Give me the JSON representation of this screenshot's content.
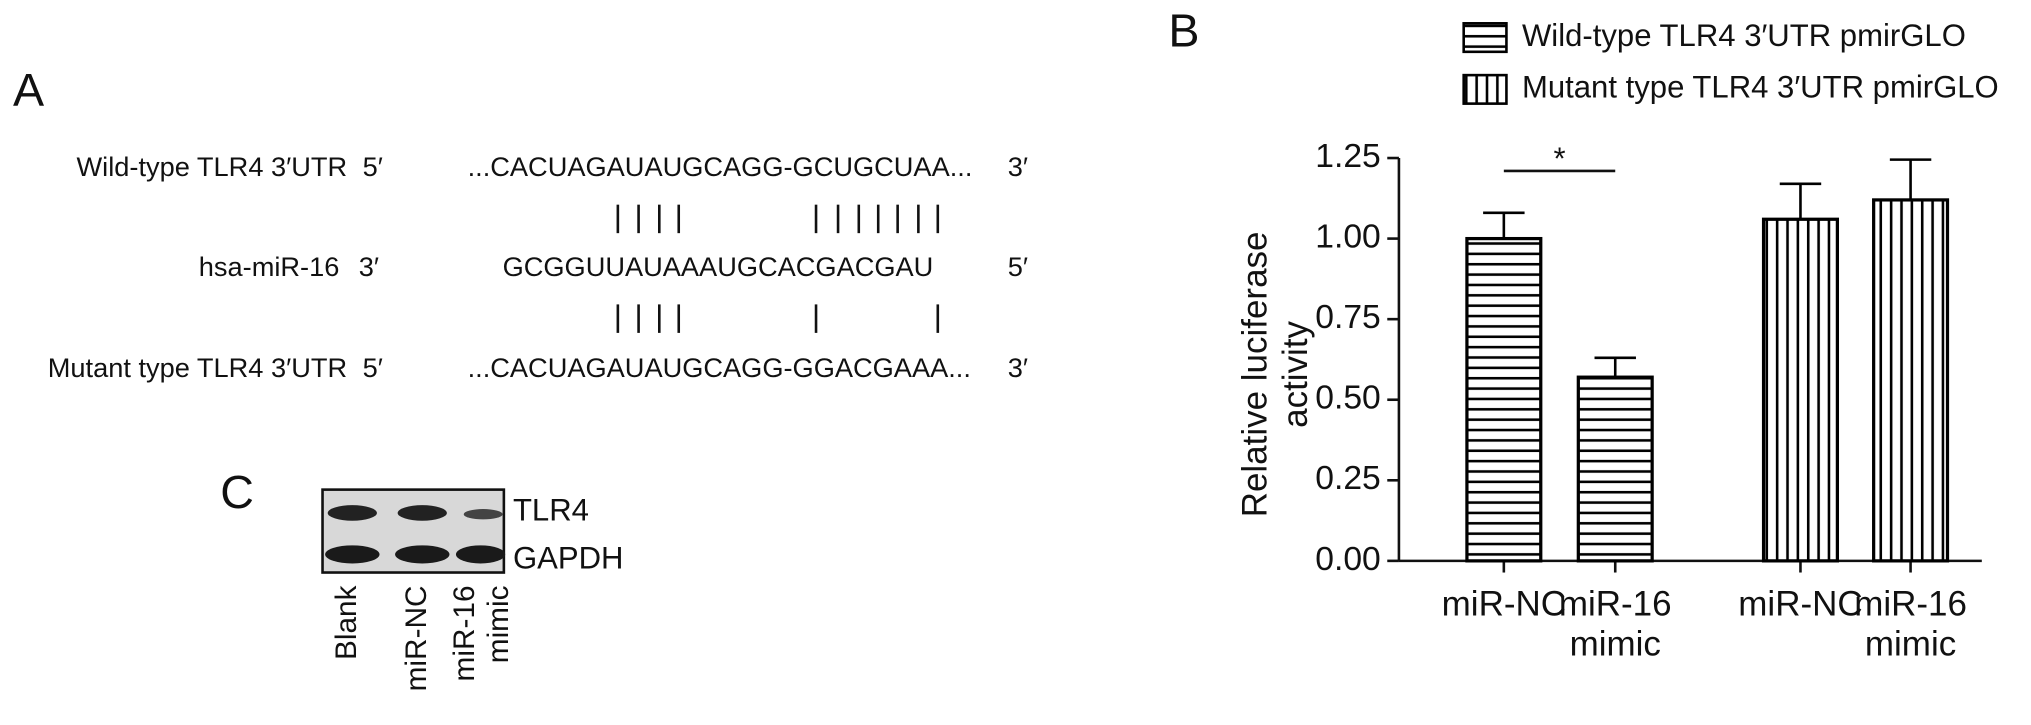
{
  "panel_labels": {
    "a": "A",
    "b": "B",
    "c": "C"
  },
  "panel_a": {
    "rows": [
      {
        "label": "Wild-type TLR4 3′UTR",
        "left_end": "5′",
        "sequence": "...CACUAGAUAUGCAGG-GCUGCUAA...",
        "right_end": "3′"
      },
      {
        "label": "hsa-miR-16",
        "left_end": "3′",
        "sequence": "GCGGUUAUAAAUGCACGACGAU",
        "right_end": "5′"
      },
      {
        "label": "Mutant type TLR4 3′UTR",
        "left_end": "5′",
        "sequence": "...CACUAGAUAUGCAGG-GGACGAAA...",
        "right_end": "3′"
      }
    ]
  },
  "panel_c": {
    "bands": [
      "TLR4",
      "GAPDH"
    ],
    "lanes": [
      "Blank",
      "miR-NC",
      "miR-16 mimic"
    ]
  },
  "chart_data": {
    "type": "bar",
    "ylabel": "Relative luciferase activity",
    "categories": [
      "miR-NC",
      "miR-16 mimic",
      "miR-NC",
      "miR-16 mimic"
    ],
    "series": [
      {
        "name": "Wild-type TLR4 3′UTR pmirGLO",
        "color": "#000000",
        "hatch": "horizontal",
        "values": [
          1.0,
          0.57,
          null,
          null
        ],
        "errors": [
          0.08,
          0.06,
          null,
          null
        ]
      },
      {
        "name": "Mutant type TLR4 3′UTR pmirGLO",
        "color": "#000000",
        "hatch": "vertical",
        "values": [
          null,
          null,
          1.06,
          1.12
        ],
        "errors": [
          null,
          null,
          0.11,
          0.125
        ]
      }
    ],
    "annotation": "*",
    "ylim": [
      0,
      1.25
    ],
    "yticks": [
      {
        "value": 0,
        "label": "0.00"
      },
      {
        "value": 0.25,
        "label": "0.25"
      },
      {
        "value": 0.5,
        "label": "0.50"
      },
      {
        "value": 0.75,
        "label": "0.75"
      },
      {
        "value": 1,
        "label": "1.00"
      },
      {
        "value": 1.25,
        "label": "1.25"
      }
    ],
    "grid": false
  }
}
